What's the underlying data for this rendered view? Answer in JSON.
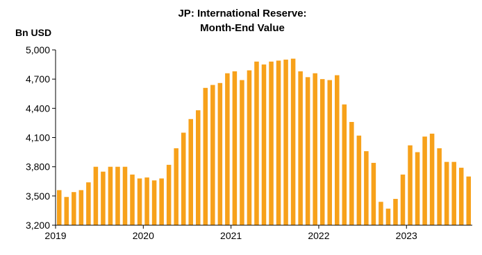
{
  "chart_data": {
    "type": "bar",
    "title_line1": "JP: International Reserve:",
    "title_line2": "Month-End Value",
    "ylabel": "Bn USD",
    "xlabel": "",
    "ylim": [
      3200,
      5000
    ],
    "yticks": [
      3200,
      3500,
      3800,
      4100,
      4400,
      4700,
      5000
    ],
    "ytick_labels": [
      "3,200",
      "3,500",
      "3,800",
      "4,100",
      "4,400",
      "4,700",
      "5,000"
    ],
    "xticks": [
      "2019",
      "2020",
      "2021",
      "2022",
      "2023"
    ],
    "bar_color": "#F7A11A",
    "grid": false,
    "categories": [
      "2019-01",
      "2019-02",
      "2019-03",
      "2019-04",
      "2019-05",
      "2019-06",
      "2019-07",
      "2019-08",
      "2019-09",
      "2019-10",
      "2019-11",
      "2019-12",
      "2020-01",
      "2020-02",
      "2020-03",
      "2020-04",
      "2020-05",
      "2020-06",
      "2020-07",
      "2020-08",
      "2020-09",
      "2020-10",
      "2020-11",
      "2020-12",
      "2021-01",
      "2021-02",
      "2021-03",
      "2021-04",
      "2021-05",
      "2021-06",
      "2021-07",
      "2021-08",
      "2021-09",
      "2021-10",
      "2021-11",
      "2021-12",
      "2022-01",
      "2022-02",
      "2022-03",
      "2022-04",
      "2022-05",
      "2022-06",
      "2022-07",
      "2022-08",
      "2022-09",
      "2022-10",
      "2022-11",
      "2022-12",
      "2023-01",
      "2023-02",
      "2023-03",
      "2023-04",
      "2023-05",
      "2023-06",
      "2023-07",
      "2023-08",
      "2023-09"
    ],
    "values": [
      3560,
      3490,
      3540,
      3560,
      3640,
      3800,
      3750,
      3800,
      3800,
      3800,
      3720,
      3680,
      3690,
      3660,
      3680,
      3820,
      3990,
      4150,
      4290,
      4380,
      4610,
      4640,
      4660,
      4760,
      4780,
      4690,
      4790,
      4880,
      4850,
      4880,
      4890,
      4900,
      4910,
      4780,
      4720,
      4760,
      4700,
      4690,
      4740,
      4440,
      4260,
      4120,
      3960,
      3840,
      3440,
      3370,
      3470,
      3720,
      4020,
      3950,
      4110,
      4140,
      3990,
      3850,
      3850,
      3790,
      3700
    ]
  }
}
